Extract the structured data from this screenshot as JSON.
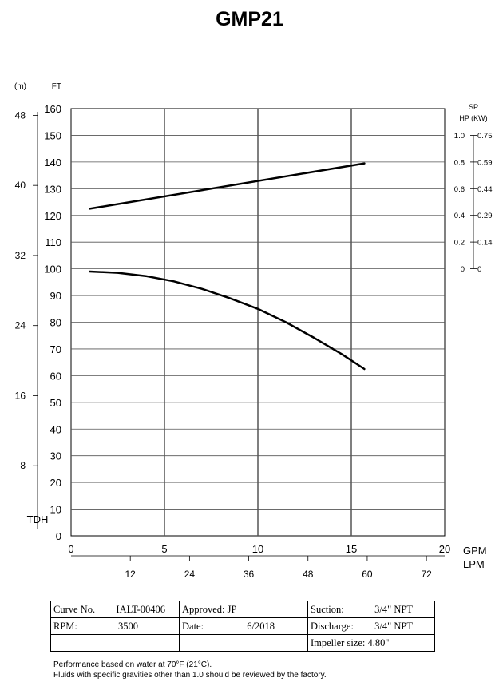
{
  "title": "GMP21",
  "chart_data": [
    {
      "type": "line",
      "x_axis": {
        "label": "GPM",
        "range": [
          0,
          20
        ],
        "ticks": [
          0,
          5,
          10,
          15,
          20
        ]
      },
      "x_axis_secondary": {
        "label": "LPM",
        "ticks": [
          12,
          24,
          36,
          48,
          60,
          72
        ]
      },
      "y_axis": {
        "label": "FT",
        "range": [
          0,
          160
        ],
        "ticks": [
          0,
          10,
          20,
          30,
          40,
          50,
          60,
          70,
          80,
          90,
          100,
          110,
          120,
          130,
          140,
          150,
          160
        ],
        "bottom_label": "TDH"
      },
      "y_axis_secondary": {
        "label": "(m)",
        "ticks": [
          8,
          16,
          24,
          32,
          40,
          48
        ]
      },
      "power_axis": {
        "label_line1": "SP",
        "label_line2": "HP (KW)",
        "hp_ticks": [
          "1.0",
          "0.8",
          "0.6",
          "0.4",
          "0.2",
          "0"
        ],
        "kw_ticks": [
          "0.75",
          "0.59",
          "0.44",
          "0.29",
          "0.14",
          "0"
        ],
        "hp_range": [
          0,
          1.0
        ]
      },
      "series": [
        {
          "values": [
            {
              "x": 1.0,
              "y": 99.0
            },
            {
              "x": 2.5,
              "y": 98.5
            },
            {
              "x": 4.0,
              "y": 97.3
            },
            {
              "x": 5.5,
              "y": 95.3
            },
            {
              "x": 7.0,
              "y": 92.5
            },
            {
              "x": 8.5,
              "y": 89.0
            },
            {
              "x": 10.0,
              "y": 85.0
            },
            {
              "x": 11.5,
              "y": 80.0
            },
            {
              "x": 13.0,
              "y": 74.2
            },
            {
              "x": 14.5,
              "y": 68.0
            },
            {
              "x": 15.7,
              "y": 62.5
            }
          ]
        },
        {
          "axis": "power",
          "values": [
            {
              "x": 1.0,
              "y": 0.45
            },
            {
              "x": 15.7,
              "y": 0.79
            }
          ]
        }
      ],
      "grid": {
        "horizontal": true,
        "vertical": true
      }
    }
  ],
  "info_table": {
    "curve_no_label": "Curve No.",
    "curve_no": "IALT-00406",
    "rpm_label": "RPM:",
    "rpm": "3500",
    "approved_label": "Approved:",
    "approved": "JP",
    "date_label": "Date:",
    "date": "6/2018",
    "suction_label": "Suction:",
    "suction": "3/4\" NPT",
    "discharge_label": "Discharge:",
    "discharge": "3/4\" NPT",
    "impeller_label": "Impeller size:",
    "impeller": "4.80\""
  },
  "notes": {
    "line1": "Performance based on water at 70°F (21°C).",
    "line2": "Fluids with specific gravities other than 1.0 should be reviewed by the factory."
  }
}
